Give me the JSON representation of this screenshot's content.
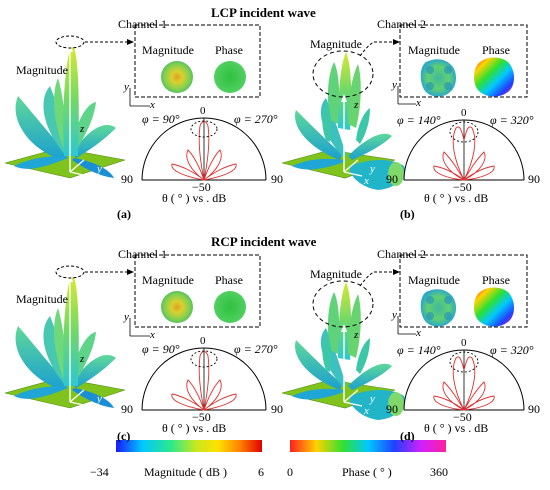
{
  "sections": [
    {
      "title": "LCP incident wave",
      "panels": [
        {
          "channel": "Channel 1",
          "magnitude_label": "Magnitude",
          "inset_magnitude": "Magnitude",
          "inset_phase": "Phase",
          "phi_left": "φ = 90°",
          "phi_right": "φ = 270°",
          "polar_top": "0",
          "polar_left": "90",
          "polar_right": "90",
          "polar_bottom": "−50",
          "theta_label": "θ ( ° ) vs . dB",
          "label": "(a)"
        },
        {
          "channel": "Channel 2",
          "magnitude_label": "Magnitude",
          "inset_magnitude": "Magnitude",
          "inset_phase": "Phase",
          "phi_left": "φ = 140°",
          "phi_right": "φ = 320°",
          "polar_top": "0",
          "polar_left": "90",
          "polar_right": "90",
          "polar_bottom": "−50",
          "theta_label": "θ ( ° ) vs . dB",
          "label": "(b)"
        }
      ]
    },
    {
      "title": "RCP incident wave",
      "panels": [
        {
          "channel": "Channel 1",
          "magnitude_label": "Magnitude",
          "inset_magnitude": "Magnitude",
          "inset_phase": "Phase",
          "phi_left": "φ = 90°",
          "phi_right": "φ = 270°",
          "polar_top": "0",
          "polar_left": "90",
          "polar_right": "90",
          "polar_bottom": "−50",
          "theta_label": "θ ( ° ) vs . dB",
          "label": "(c)"
        },
        {
          "channel": "Channel 2",
          "magnitude_label": "Magnitude",
          "inset_magnitude": "Magnitude",
          "inset_phase": "Phase",
          "phi_left": "φ = 140°",
          "phi_right": "φ = 320°",
          "polar_top": "0",
          "polar_left": "90",
          "polar_right": "90",
          "polar_bottom": "−50",
          "theta_label": "θ ( ° ) vs . dB",
          "label": "(d)"
        }
      ]
    }
  ],
  "axes": {
    "x": "x",
    "y": "y",
    "z": "z",
    "origin": "O"
  },
  "colorbars": {
    "magnitude": {
      "min": "−34",
      "label": "Magnitude ( dB )",
      "max": "6"
    },
    "phase": {
      "min": "0",
      "label": "Phase ( ° )",
      "max": "360"
    }
  },
  "colors": {
    "magnitude_scale": [
      "#1a1aff",
      "#00c8ff",
      "#2ee88a",
      "#c8e81e",
      "#ffe000",
      "#ff8000",
      "#e00000"
    ],
    "phase_scale": [
      "#ff2020",
      "#ffd200",
      "#30e030",
      "#00c8ff",
      "#2040ff",
      "#d020ff",
      "#ff20a0"
    ],
    "substrate": "#7fc31c",
    "lobe_main": "#7bd56a",
    "lobe_side": "#2fc3b8",
    "pattern_trace": "#e03030"
  }
}
